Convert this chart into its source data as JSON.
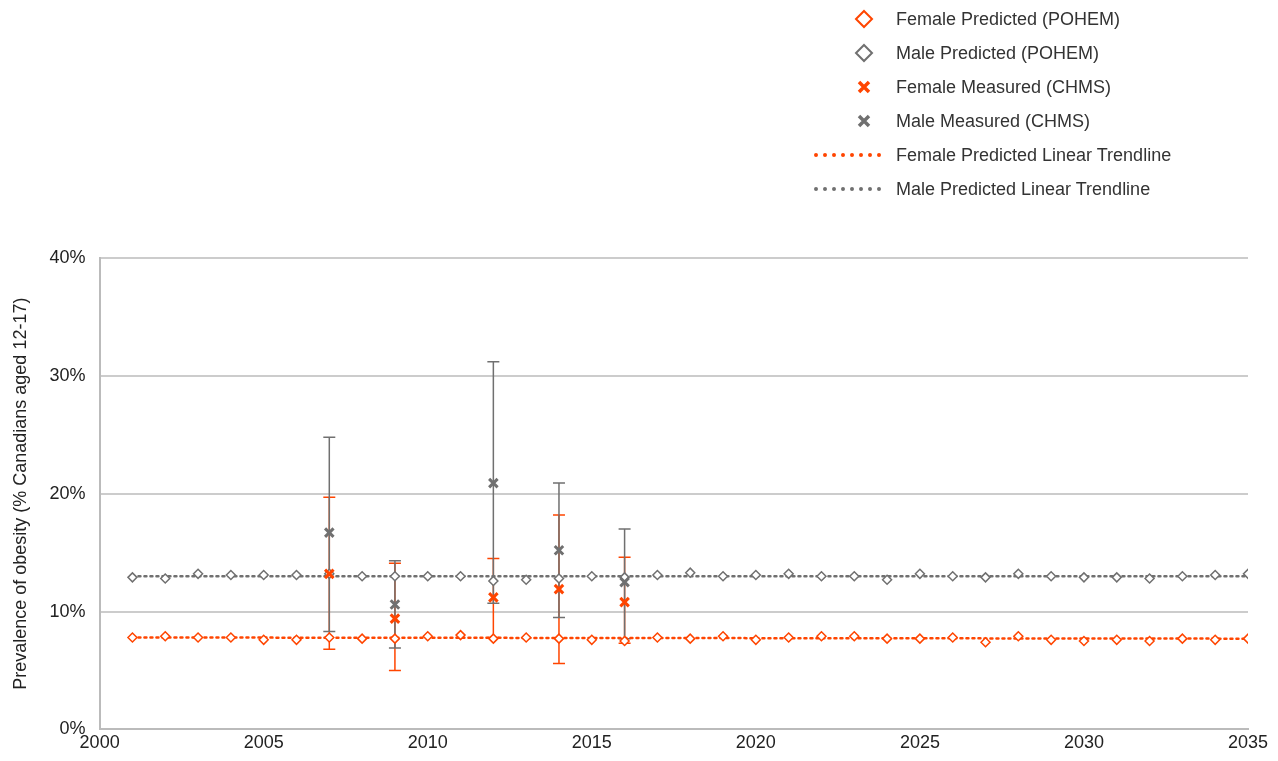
{
  "chart_data": {
    "type": "scatter",
    "ylabel": "Prevalence of obesity (% Canadians aged 12-17)",
    "xlim": [
      2000,
      2035
    ],
    "xticks": [
      2000,
      2005,
      2010,
      2015,
      2020,
      2025,
      2030,
      2035
    ],
    "ylim": [
      0,
      40
    ],
    "yticks": [
      {
        "value": 0,
        "label": "0%"
      },
      {
        "value": 10,
        "label": "10%"
      },
      {
        "value": 20,
        "label": "20%"
      },
      {
        "value": 30,
        "label": "30%"
      },
      {
        "value": 40,
        "label": "40%"
      }
    ],
    "grid": "y",
    "legend": "top right",
    "series": [
      {
        "name": "Female Predicted (POHEM)",
        "color": "#ff4500",
        "marker": "diamond",
        "x": [
          2001,
          2002,
          2003,
          2004,
          2005,
          2006,
          2007,
          2008,
          2009,
          2010,
          2011,
          2012,
          2013,
          2014,
          2015,
          2016,
          2017,
          2018,
          2019,
          2020,
          2021,
          2022,
          2023,
          2024,
          2025,
          2026,
          2027,
          2028,
          2029,
          2030,
          2031,
          2032,
          2033,
          2034,
          2035
        ],
        "values": [
          7.8,
          7.9,
          7.8,
          7.8,
          7.6,
          7.6,
          7.8,
          7.7,
          7.7,
          7.9,
          8.0,
          7.7,
          7.8,
          7.7,
          7.6,
          7.5,
          7.8,
          7.7,
          7.9,
          7.6,
          7.8,
          7.9,
          7.9,
          7.7,
          7.7,
          7.8,
          7.4,
          7.9,
          7.6,
          7.5,
          7.6,
          7.5,
          7.7,
          7.6,
          7.7
        ]
      },
      {
        "name": "Male Predicted (POHEM)",
        "color": "#707070",
        "marker": "diamond",
        "x": [
          2001,
          2002,
          2003,
          2004,
          2005,
          2006,
          2007,
          2008,
          2009,
          2010,
          2011,
          2012,
          2013,
          2014,
          2015,
          2016,
          2017,
          2018,
          2019,
          2020,
          2021,
          2022,
          2023,
          2024,
          2025,
          2026,
          2027,
          2028,
          2029,
          2030,
          2031,
          2032,
          2033,
          2034,
          2035
        ],
        "values": [
          12.9,
          12.8,
          13.2,
          13.1,
          13.1,
          13.1,
          13.2,
          13.0,
          13.0,
          13.0,
          13.0,
          12.6,
          12.7,
          12.8,
          13.0,
          12.9,
          13.1,
          13.3,
          13.0,
          13.1,
          13.2,
          13.0,
          13.0,
          12.7,
          13.2,
          13.0,
          12.9,
          13.2,
          13.0,
          12.9,
          12.9,
          12.8,
          13.0,
          13.1,
          13.2
        ]
      },
      {
        "name": "Female Measured (CHMS)",
        "color": "#ff4500",
        "marker": "cross",
        "x": [
          2007,
          2009,
          2012,
          2014,
          2016
        ],
        "values": [
          13.2,
          9.4,
          11.2,
          11.9,
          10.8
        ],
        "errors": [
          [
            6.8,
            19.7
          ],
          [
            5.0,
            14.1
          ],
          [
            7.8,
            14.5
          ],
          [
            5.6,
            18.2
          ],
          [
            7.3,
            14.6
          ]
        ]
      },
      {
        "name": "Male Measured (CHMS)",
        "color": "#707070",
        "marker": "cross",
        "x": [
          2007,
          2009,
          2012,
          2014,
          2016
        ],
        "values": [
          16.7,
          10.6,
          20.9,
          15.2,
          12.5
        ],
        "errors": [
          [
            8.3,
            24.8
          ],
          [
            6.9,
            14.3
          ],
          [
            10.7,
            31.2
          ],
          [
            9.5,
            20.9
          ],
          [
            7.7,
            17.0
          ]
        ]
      },
      {
        "name": "Female Predicted Linear Trendline",
        "type": "line",
        "color": "#ff4500",
        "marker": "none",
        "line_style": "dotted",
        "x": [
          2001,
          2035
        ],
        "values": [
          7.8,
          7.7
        ]
      },
      {
        "name": "Male Predicted Linear Trendline",
        "type": "line",
        "color": "#707070",
        "marker": "none",
        "line_style": "dotted",
        "x": [
          2001,
          2035
        ],
        "values": [
          13.0,
          13.0
        ]
      }
    ]
  }
}
